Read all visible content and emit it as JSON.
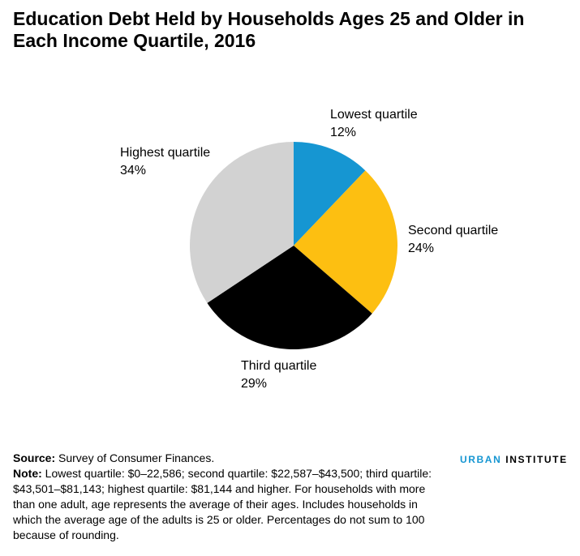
{
  "chart_data": {
    "type": "pie",
    "title": "Education Debt Held by Households Ages 25 and Older in Each Income Quartile, 2016",
    "categories": [
      "Lowest quartile",
      "Second quartile",
      "Third quartile",
      "Highest quartile"
    ],
    "values": [
      12,
      24,
      29,
      34
    ],
    "value_labels": [
      "12%",
      "24%",
      "29%",
      "34%"
    ],
    "colors": [
      "#1696d2",
      "#fdbf11",
      "#000000",
      "#d2d2d2"
    ],
    "source_label": "Source:",
    "source": "Survey of Consumer Finances.",
    "note_label": "Note:",
    "note": "Lowest quartile: $0–22,586; second quartile: $22,587–$43,500; third quartile: $43,501–$81,143; highest quartile: $81,144 and higher. For households with more than one adult, age represents the average of their ages. Includes households in which the average age of the adults is 25 or older. Percentages do not sum to 100 because of rounding.",
    "branding": {
      "first": "URBAN",
      "second": "INSTITUTE"
    }
  }
}
